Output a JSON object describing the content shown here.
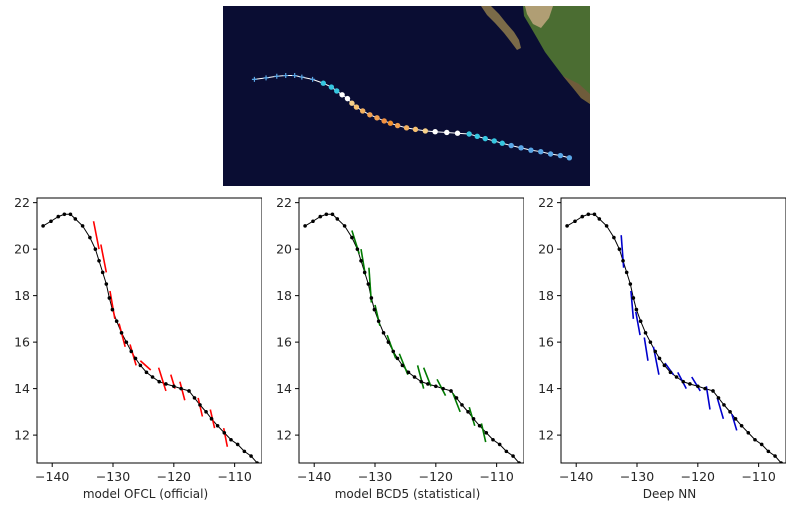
{
  "colors": {
    "ocean": "#0a0d33",
    "track_line": "#ffffff",
    "best_track": "#000000",
    "land_dark": "#6f5c3b",
    "land_green": "#3f6a2c",
    "land_sand": "#c8b48a",
    "axis_text": "#262626"
  },
  "map_track_colors": [
    "#5aa6e6",
    "#5aa6e6",
    "#5aa6e6",
    "#5aa6e6",
    "#5aa6e6",
    "#5aa6e6",
    "#5aa6e6",
    "#36c6e0",
    "#36c6e0",
    "#36c6e0",
    "#ffffff",
    "#ffffff",
    "#f7d08a",
    "#f7c070",
    "#f2b060",
    "#f2a050",
    "#f2a050",
    "#f29040",
    "#f09030",
    "#f0a050",
    "#f2b060",
    "#f7c070",
    "#f7d08a",
    "#ffffff",
    "#ffffff",
    "#ffffff",
    "#36c6e0",
    "#36c6e0",
    "#36c6e0",
    "#36c6e0",
    "#36c6e0",
    "#5aa6e6"
  ],
  "chart_data": [
    {
      "type": "line",
      "xlabel": "model OFCL (official)",
      "xlim": [
        -142.5,
        -105.5
      ],
      "ylim": [
        10.8,
        22.2
      ],
      "xticks": [
        -140,
        -130,
        -120,
        -110
      ],
      "xtick_labels": [
        "−140",
        "−130",
        "−120",
        "−110"
      ],
      "yticks": [
        12,
        14,
        16,
        18,
        20,
        22
      ],
      "ytick_labels": [
        "12",
        "14",
        "16",
        "18",
        "20",
        "22"
      ],
      "grid": false,
      "best_track": {
        "name": "",
        "lon": [
          -141.5,
          -140.2,
          -139.0,
          -138.0,
          -137.0,
          -136.2,
          -135.0,
          -133.8,
          -132.9,
          -132.3,
          -131.7,
          -131.1,
          -130.6,
          -130.1,
          -129.4,
          -128.6,
          -127.8,
          -127.0,
          -126.3,
          -125.5,
          -124.5,
          -123.5,
          -122.4,
          -121.3,
          -120.0,
          -118.8,
          -117.5,
          -116.6,
          -115.7,
          -114.7,
          -113.8,
          -112.8,
          -111.7,
          -110.6,
          -109.5,
          -108.4,
          -107.3,
          -106.3
        ],
        "lat": [
          21.0,
          21.2,
          21.4,
          21.5,
          21.5,
          21.3,
          21.0,
          20.5,
          20.0,
          19.5,
          19.0,
          18.5,
          17.9,
          17.4,
          16.9,
          16.4,
          16.0,
          15.6,
          15.3,
          15.0,
          14.7,
          14.5,
          14.3,
          14.2,
          14.1,
          14.0,
          13.9,
          13.6,
          13.3,
          13.0,
          12.7,
          12.4,
          12.1,
          11.8,
          11.6,
          11.3,
          11.1,
          10.8
        ]
      },
      "forecasts": {
        "color": "#ff0000",
        "segments": [
          {
            "lon": [
              -133.2,
              -132.3
            ],
            "lat": [
              21.2,
              20.0
            ]
          },
          {
            "lon": [
              -132.0,
              -131.1
            ],
            "lat": [
              20.2,
              19.0
            ]
          },
          {
            "lon": [
              -130.5,
              -129.7
            ],
            "lat": [
              18.2,
              17.0
            ]
          },
          {
            "lon": [
              -129.0,
              -128.0
            ],
            "lat": [
              16.8,
              15.8
            ]
          },
          {
            "lon": [
              -127.2,
              -126.2
            ],
            "lat": [
              15.9,
              15.0
            ]
          },
          {
            "lon": [
              -125.5,
              -123.8
            ],
            "lat": [
              15.2,
              14.8
            ]
          },
          {
            "lon": [
              -122.5,
              -121.3
            ],
            "lat": [
              14.9,
              13.9
            ]
          },
          {
            "lon": [
              -120.5,
              -119.8
            ],
            "lat": [
              14.6,
              14.0
            ]
          },
          {
            "lon": [
              -119.0,
              -118.2
            ],
            "lat": [
              14.3,
              13.5
            ]
          },
          {
            "lon": [
              -116.0,
              -115.3
            ],
            "lat": [
              13.6,
              12.8
            ]
          },
          {
            "lon": [
              -114.0,
              -113.3
            ],
            "lat": [
              13.1,
              12.3
            ]
          },
          {
            "lon": [
              -111.8,
              -111.2
            ],
            "lat": [
              12.3,
              11.5
            ]
          }
        ]
      }
    },
    {
      "type": "line",
      "xlabel": "model BCD5 (statistical)",
      "xlim": [
        -142.5,
        -105.5
      ],
      "ylim": [
        10.8,
        22.2
      ],
      "xticks": [
        -140,
        -130,
        -120,
        -110
      ],
      "xtick_labels": [
        "−140",
        "−130",
        "−120",
        "−110"
      ],
      "yticks": [
        12,
        14,
        16,
        18,
        20,
        22
      ],
      "ytick_labels": [
        "12",
        "14",
        "16",
        "18",
        "20",
        "22"
      ],
      "grid": false,
      "best_track": {
        "name": "",
        "lon": [
          -141.5,
          -140.2,
          -139.0,
          -138.0,
          -137.0,
          -136.2,
          -135.0,
          -133.8,
          -132.9,
          -132.3,
          -131.7,
          -131.1,
          -130.6,
          -130.1,
          -129.4,
          -128.6,
          -127.8,
          -127.0,
          -126.3,
          -125.5,
          -124.5,
          -123.5,
          -122.4,
          -121.3,
          -120.0,
          -118.8,
          -117.5,
          -116.6,
          -115.7,
          -114.7,
          -113.8,
          -112.8,
          -111.7,
          -110.6,
          -109.5,
          -108.4,
          -107.3,
          -106.3
        ],
        "lat": [
          21.0,
          21.2,
          21.4,
          21.5,
          21.5,
          21.3,
          21.0,
          20.5,
          20.0,
          19.5,
          19.0,
          18.5,
          17.9,
          17.4,
          16.9,
          16.4,
          16.0,
          15.6,
          15.3,
          15.0,
          14.7,
          14.5,
          14.3,
          14.2,
          14.1,
          14.0,
          13.9,
          13.6,
          13.3,
          13.0,
          12.7,
          12.4,
          12.1,
          11.8,
          11.6,
          11.3,
          11.1,
          10.8
        ]
      },
      "forecasts": {
        "color": "#007a00",
        "segments": [
          {
            "lon": [
              -133.8,
              -132.6
            ],
            "lat": [
              20.8,
              19.8
            ]
          },
          {
            "lon": [
              -132.3,
              -131.6
            ],
            "lat": [
              20.0,
              18.9
            ]
          },
          {
            "lon": [
              -131.0,
              -130.6
            ],
            "lat": [
              19.2,
              17.7
            ]
          },
          {
            "lon": [
              -130.0,
              -129.2
            ],
            "lat": [
              17.6,
              16.7
            ]
          },
          {
            "lon": [
              -128.0,
              -126.6
            ],
            "lat": [
              16.3,
              15.3
            ]
          },
          {
            "lon": [
              -126.0,
              -124.6
            ],
            "lat": [
              15.5,
              14.6
            ]
          },
          {
            "lon": [
              -123.0,
              -122.0
            ],
            "lat": [
              15.0,
              14.0
            ]
          },
          {
            "lon": [
              -122.0,
              -120.8
            ],
            "lat": [
              14.9,
              14.1
            ]
          },
          {
            "lon": [
              -119.8,
              -118.4
            ],
            "lat": [
              14.4,
              13.7
            ]
          },
          {
            "lon": [
              -117.2,
              -116.0
            ],
            "lat": [
              13.8,
              13.0
            ]
          },
          {
            "lon": [
              -114.5,
              -113.6
            ],
            "lat": [
              13.2,
              12.4
            ]
          },
          {
            "lon": [
              -112.5,
              -111.8
            ],
            "lat": [
              12.5,
              11.7
            ]
          }
        ]
      }
    },
    {
      "type": "line",
      "xlabel": "Deep NN",
      "xlim": [
        -142.5,
        -105.5
      ],
      "ylim": [
        10.8,
        22.2
      ],
      "xticks": [
        -140,
        -130,
        -120,
        -110
      ],
      "xtick_labels": [
        "−140",
        "−130",
        "−120",
        "−110"
      ],
      "yticks": [
        12,
        14,
        16,
        18,
        20,
        22
      ],
      "ytick_labels": [
        "12",
        "14",
        "16",
        "18",
        "20",
        "22"
      ],
      "grid": false,
      "best_track": {
        "name": "",
        "lon": [
          -141.5,
          -140.2,
          -139.0,
          -138.0,
          -137.0,
          -136.2,
          -135.0,
          -133.8,
          -132.9,
          -132.3,
          -131.7,
          -131.1,
          -130.6,
          -130.1,
          -129.4,
          -128.6,
          -127.8,
          -127.0,
          -126.3,
          -125.5,
          -124.5,
          -123.5,
          -122.4,
          -121.3,
          -120.0,
          -118.8,
          -117.5,
          -116.6,
          -115.7,
          -114.7,
          -113.8,
          -112.8,
          -111.7,
          -110.6,
          -109.5,
          -108.4,
          -107.3,
          -106.3
        ],
        "lat": [
          21.0,
          21.2,
          21.4,
          21.5,
          21.5,
          21.3,
          21.0,
          20.5,
          20.0,
          19.5,
          19.0,
          18.5,
          17.9,
          17.4,
          16.9,
          16.4,
          16.0,
          15.6,
          15.3,
          15.0,
          14.7,
          14.5,
          14.3,
          14.2,
          14.1,
          14.0,
          13.9,
          13.6,
          13.3,
          13.0,
          12.7,
          12.4,
          12.1,
          11.8,
          11.6,
          11.3,
          11.1,
          10.8
        ]
      },
      "forecasts": {
        "color": "#0000cc",
        "segments": [
          {
            "lon": [
              -132.6,
              -132.2
            ],
            "lat": [
              20.6,
              19.2
            ]
          },
          {
            "lon": [
              -131.0,
              -130.6
            ],
            "lat": [
              18.2,
              17.0
            ]
          },
          {
            "lon": [
              -130.2,
              -129.5
            ],
            "lat": [
              17.3,
              16.3
            ]
          },
          {
            "lon": [
              -128.8,
              -128.2
            ],
            "lat": [
              16.2,
              15.2
            ]
          },
          {
            "lon": [
              -127.3,
              -126.4
            ],
            "lat": [
              15.8,
              14.6
            ]
          },
          {
            "lon": [
              -125.4,
              -124.0
            ],
            "lat": [
              15.1,
              14.6
            ]
          },
          {
            "lon": [
              -123.3,
              -121.9
            ],
            "lat": [
              14.7,
              14.0
            ]
          },
          {
            "lon": [
              -121.0,
              -119.6
            ],
            "lat": [
              14.5,
              13.9
            ]
          },
          {
            "lon": [
              -118.6,
              -118.0
            ],
            "lat": [
              14.1,
              13.1
            ]
          },
          {
            "lon": [
              -116.8,
              -115.8
            ],
            "lat": [
              13.6,
              12.7
            ]
          },
          {
            "lon": [
              -114.4,
              -113.6
            ],
            "lat": [
              12.9,
              12.2
            ]
          }
        ]
      }
    }
  ]
}
